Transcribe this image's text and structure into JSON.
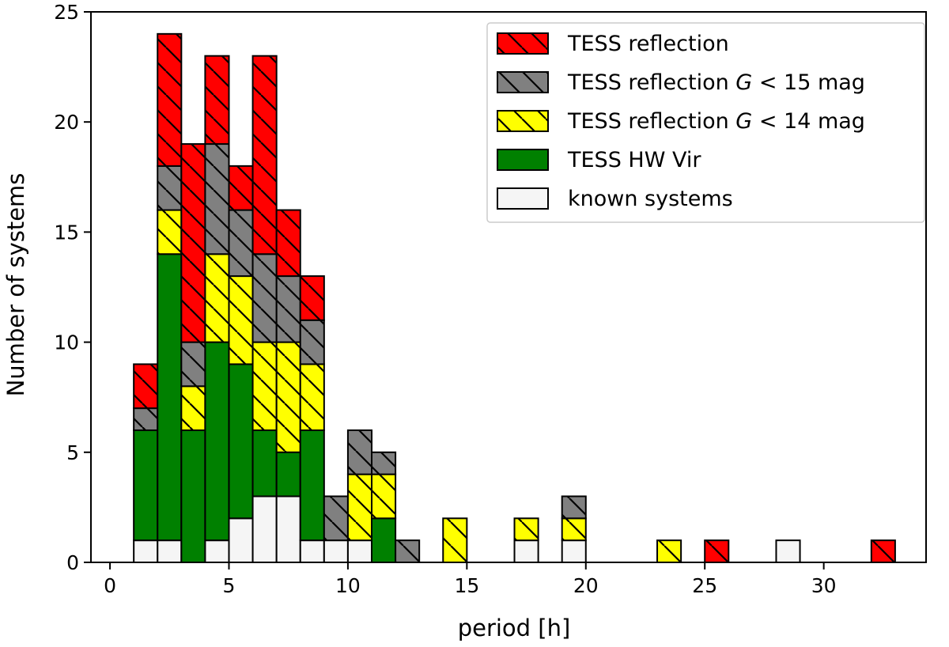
{
  "chart_data": {
    "type": "bar",
    "stacked": true,
    "xlabel": "period [h]",
    "ylabel": "Number of systems",
    "xlim": [
      -0.8,
      34.3
    ],
    "ylim": [
      0,
      25
    ],
    "xticks": [
      0,
      5,
      10,
      15,
      20,
      25,
      30
    ],
    "yticks": [
      0,
      5,
      10,
      15,
      20,
      25
    ],
    "bin_width": 1.0,
    "bin_starts": [
      1.0,
      2.0,
      3.0,
      4.0,
      5.0,
      6.0,
      7.0,
      8.0,
      9.0,
      10.0,
      11.0,
      12.0,
      14.0,
      17.0,
      19.0,
      23.0,
      25.0,
      28.0,
      32.0
    ],
    "legend_position": "top-right",
    "series": [
      {
        "name": "known systems",
        "color": "#f5f5f5",
        "hatch": false,
        "values": [
          1,
          1,
          0,
          1,
          2,
          3,
          3,
          1,
          1,
          1,
          0,
          0,
          0,
          1,
          1,
          0,
          0,
          1,
          0
        ]
      },
      {
        "name": "TESS HW Vir",
        "color": "#008000",
        "hatch": false,
        "values": [
          5,
          13,
          6,
          9,
          7,
          3,
          2,
          5,
          0,
          0,
          2,
          0,
          0,
          0,
          0,
          0,
          0,
          0,
          0
        ]
      },
      {
        "name": "TESS reflection G < 14 mag",
        "color": "#ffff00",
        "hatch": true,
        "values": [
          0,
          2,
          2,
          4,
          4,
          4,
          5,
          3,
          0,
          3,
          2,
          0,
          2,
          1,
          1,
          1,
          0,
          0,
          0
        ]
      },
      {
        "name": "TESS reflection G < 15 mag",
        "color": "#808080",
        "hatch": true,
        "values": [
          1,
          2,
          2,
          5,
          3,
          4,
          3,
          2,
          2,
          2,
          1,
          1,
          0,
          0,
          1,
          0,
          0,
          0,
          0
        ]
      },
      {
        "name": "TESS reflection",
        "color": "#ff0000",
        "hatch": true,
        "values": [
          2,
          6,
          9,
          4,
          2,
          9,
          3,
          2,
          0,
          0,
          0,
          0,
          0,
          0,
          0,
          0,
          1,
          0,
          1
        ]
      }
    ],
    "totals": [
      9,
      24,
      19,
      23,
      18,
      23,
      16,
      13,
      3,
      6,
      5,
      1,
      2,
      2,
      3,
      1,
      1,
      1,
      1
    ]
  },
  "legend": {
    "items": [
      {
        "text": "TESS reflection",
        "color": "#ff0000",
        "hatch": true
      },
      {
        "text": "TESS reflection G < 15 mag",
        "color": "#808080",
        "hatch": true,
        "main": "TESS reflection ",
        "var": "G",
        "rest": " < 15 mag"
      },
      {
        "text": "TESS reflection G < 14 mag",
        "color": "#ffff00",
        "hatch": true,
        "main": "TESS reflection ",
        "var": "G",
        "rest": " < 14 mag"
      },
      {
        "text": "TESS HW Vir",
        "color": "#008000",
        "hatch": false
      },
      {
        "text": "known systems",
        "color": "#f5f5f5",
        "hatch": false
      }
    ]
  }
}
